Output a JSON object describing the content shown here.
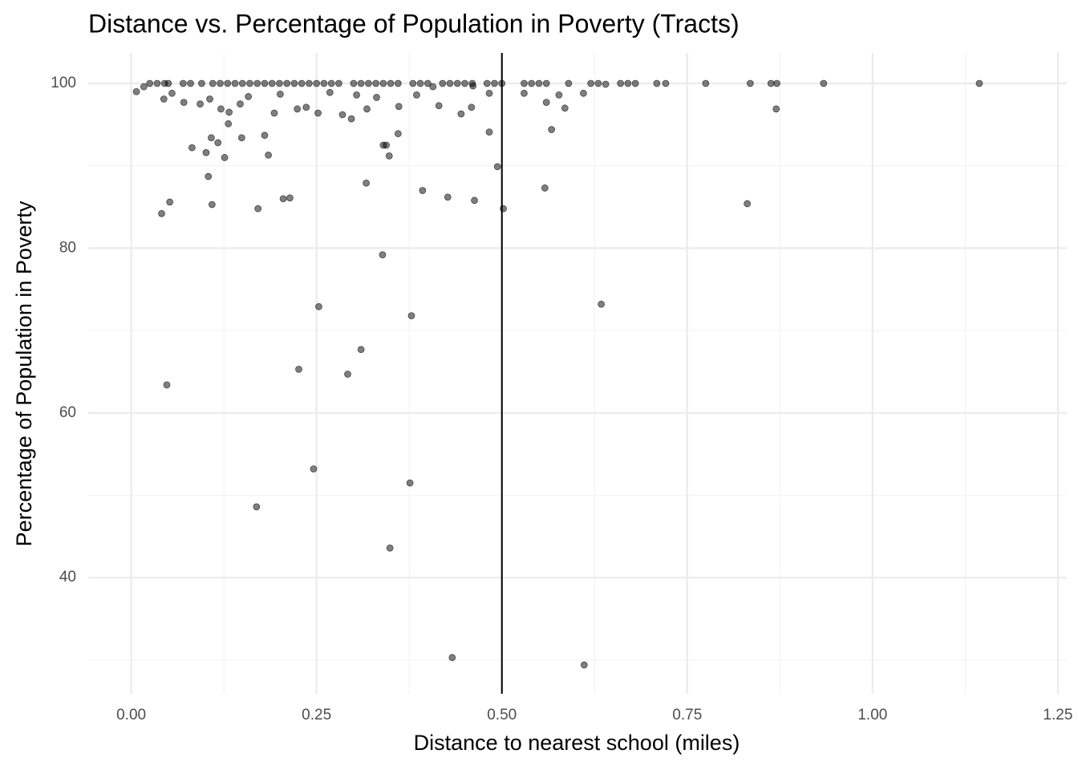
{
  "chart_data": {
    "type": "scatter",
    "title": "Distance vs. Percentage of Population in Poverty (Tracts)",
    "x_label": "Distance to nearest school (miles)",
    "y_label": "Percentage of Population in Poverty",
    "color": "#000000",
    "grid": true,
    "vline": 0.5,
    "xlim": [
      -0.058,
      1.262
    ],
    "ylim": [
      25.9,
      103.7
    ],
    "xticks": [
      {
        "value": 0,
        "label": "0.00"
      },
      {
        "value": 0.25,
        "label": "0.25"
      },
      {
        "value": 0.5,
        "label": "0.50"
      },
      {
        "value": 0.75,
        "label": "0.75"
      },
      {
        "value": 1,
        "label": "1.00"
      },
      {
        "value": 1.25,
        "label": "1.25"
      }
    ],
    "yticks": [
      40,
      60,
      80,
      100
    ],
    "x": [
      0.007,
      0.044,
      0.041,
      0.052,
      0.048,
      0.082,
      0.101,
      0.108,
      0.117,
      0.109,
      0.104,
      0.126,
      0.131,
      0.149,
      0.171,
      0.18,
      0.185,
      0.205,
      0.214,
      0.169,
      0.226,
      0.246,
      0.253,
      0.292,
      0.31,
      0.317,
      0.339,
      0.34,
      0.344,
      0.348,
      0.349,
      0.36,
      0.378,
      0.376,
      0.393,
      0.427,
      0.433,
      0.463,
      0.483,
      0.494,
      0.502,
      0.558,
      0.567,
      0.611,
      0.634,
      0.831,
      0.87,
      1.144,
      0.934,
      0.871,
      0.863,
      0.835,
      0.775,
      0.721,
      0.709,
      0.025,
      0.035,
      0.045,
      0.05,
      0.07,
      0.08,
      0.095,
      0.11,
      0.12,
      0.13,
      0.14,
      0.15,
      0.16,
      0.17,
      0.18,
      0.19,
      0.2,
      0.21,
      0.22,
      0.23,
      0.24,
      0.25,
      0.26,
      0.27,
      0.28,
      0.3,
      0.31,
      0.32,
      0.33,
      0.34,
      0.35,
      0.36,
      0.38,
      0.39,
      0.4,
      0.42,
      0.43,
      0.44,
      0.45,
      0.46,
      0.48,
      0.49,
      0.5,
      0.53,
      0.54,
      0.55,
      0.56,
      0.59,
      0.62,
      0.63,
      0.66,
      0.67,
      0.68,
      0.071,
      0.093,
      0.121,
      0.132,
      0.147,
      0.193,
      0.224,
      0.236,
      0.252,
      0.285,
      0.297,
      0.318,
      0.361,
      0.415,
      0.445,
      0.459,
      0.56,
      0.585,
      0.61,
      0.53,
      0.577,
      0.483,
      0.385,
      0.331,
      0.304,
      0.268,
      0.201,
      0.158,
      0.106,
      0.055,
      0.017,
      0.407,
      0.461,
      0.64
    ],
    "values": [
      99.0,
      98.1,
      84.2,
      85.6,
      63.4,
      92.2,
      91.6,
      93.4,
      92.8,
      85.3,
      88.7,
      91.0,
      95.1,
      93.4,
      84.8,
      93.7,
      91.3,
      86.0,
      86.1,
      48.6,
      65.3,
      53.2,
      72.9,
      64.7,
      67.7,
      87.9,
      79.2,
      92.5,
      92.5,
      91.2,
      43.6,
      93.9,
      71.8,
      51.5,
      87.0,
      86.2,
      30.3,
      85.8,
      94.1,
      89.9,
      84.8,
      87.3,
      94.4,
      29.4,
      73.2,
      85.4,
      96.9,
      100,
      100,
      100,
      100,
      100,
      100,
      100,
      100,
      100,
      100,
      100,
      100,
      100,
      100,
      100,
      100,
      100,
      100,
      100,
      100,
      100,
      100,
      100,
      100,
      100,
      100,
      100,
      100,
      100,
      100,
      100,
      100,
      100,
      100,
      100,
      100,
      100,
      100,
      100,
      100,
      100,
      100,
      100,
      100,
      100,
      100,
      100,
      100,
      100,
      100,
      100,
      100,
      100,
      100,
      100,
      100,
      100,
      100,
      100,
      100,
      100,
      97.7,
      97.5,
      96.9,
      96.5,
      97.5,
      96.4,
      96.9,
      97.1,
      96.4,
      96.2,
      95.7,
      96.9,
      97.2,
      97.3,
      96.3,
      97.1,
      97.7,
      97.0,
      98.8,
      98.8,
      98.6,
      98.8,
      98.6,
      98.3,
      98.6,
      98.9,
      98.7,
      98.4,
      98.1,
      98.8,
      99.6,
      99.6,
      99.7,
      99.9
    ]
  }
}
